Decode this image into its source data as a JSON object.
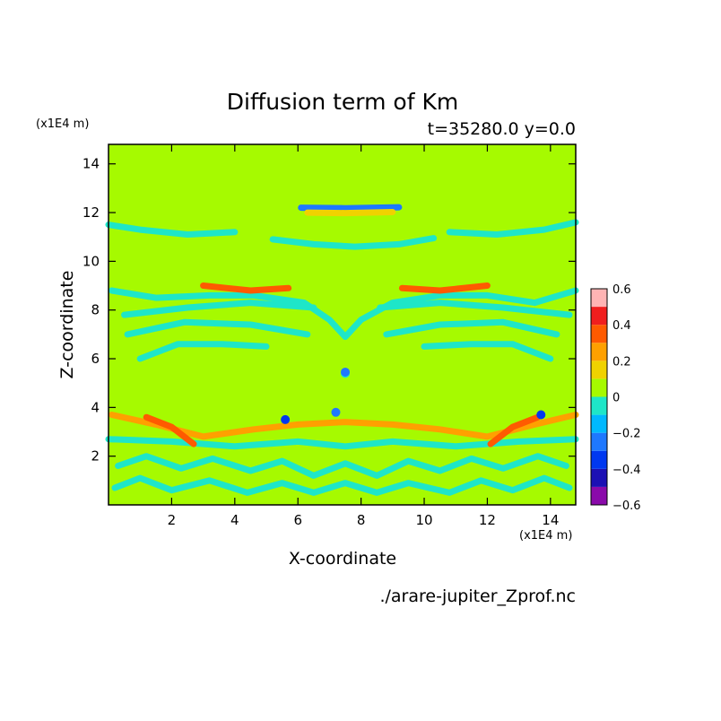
{
  "chart_data": {
    "type": "heatmap",
    "title": "Diffusion term of Km",
    "subtitle": "t=35280.0 y=0.0",
    "xlabel": "X-coordinate",
    "ylabel": "Z-coordinate",
    "x_unit": "(x1E4 m)",
    "y_unit": "(x1E4 m)",
    "xlim": [
      0,
      14.8
    ],
    "ylim": [
      0,
      14.8
    ],
    "x_ticks": [
      2,
      4,
      6,
      8,
      10,
      12,
      14
    ],
    "y_ticks": [
      2,
      4,
      6,
      8,
      10,
      12,
      14
    ],
    "background_value": 0,
    "colorbar": {
      "ticks": [
        "0.6",
        "0.4",
        "0.2",
        "0",
        "−0.2",
        "−0.4",
        "−0.6"
      ],
      "levels": [
        {
          "from": -0.6,
          "to": -0.5,
          "color": "#8a0aaa"
        },
        {
          "from": -0.5,
          "to": -0.4,
          "color": "#1c10b4"
        },
        {
          "from": -0.4,
          "to": -0.3,
          "color": "#0038f0"
        },
        {
          "from": -0.3,
          "to": -0.2,
          "color": "#1e78ff"
        },
        {
          "from": -0.2,
          "to": -0.1,
          "color": "#00b8ff"
        },
        {
          "from": -0.1,
          "to": 0.0,
          "color": "#1ee6c8"
        },
        {
          "from": 0.0,
          "to": 0.1,
          "color": "#a6fa00"
        },
        {
          "from": 0.1,
          "to": 0.2,
          "color": "#f0d200"
        },
        {
          "from": 0.2,
          "to": 0.3,
          "color": "#ffa000"
        },
        {
          "from": 0.3,
          "to": 0.4,
          "color": "#ff5a00"
        },
        {
          "from": 0.4,
          "to": 0.5,
          "color": "#f01e1e"
        },
        {
          "from": 0.5,
          "to": 0.6,
          "color": "#ffb4b4"
        }
      ]
    },
    "features": [
      {
        "type": "band",
        "value": -0.05,
        "points": [
          [
            0,
            11.5
          ],
          [
            1,
            11.3
          ],
          [
            2.5,
            11.1
          ],
          [
            4,
            11.2
          ]
        ]
      },
      {
        "type": "band",
        "value": -0.05,
        "points": [
          [
            10.8,
            11.2
          ],
          [
            12.3,
            11.1
          ],
          [
            13.8,
            11.3
          ],
          [
            14.8,
            11.6
          ]
        ]
      },
      {
        "type": "band",
        "value": -0.3,
        "points": [
          [
            6.1,
            12.2
          ],
          [
            7.5,
            12.18
          ],
          [
            9.2,
            12.22
          ]
        ]
      },
      {
        "type": "band",
        "value": 0.15,
        "points": [
          [
            6.3,
            12.0
          ],
          [
            7.5,
            11.98
          ],
          [
            9.0,
            12.02
          ]
        ]
      },
      {
        "type": "band",
        "value": -0.05,
        "points": [
          [
            5.2,
            10.9
          ],
          [
            6.5,
            10.7
          ],
          [
            7.8,
            10.6
          ],
          [
            9.2,
            10.7
          ],
          [
            10.3,
            10.95
          ]
        ]
      },
      {
        "type": "band",
        "value": -0.05,
        "points": [
          [
            0.1,
            8.8
          ],
          [
            1.5,
            8.5
          ],
          [
            3.2,
            8.6
          ],
          [
            4.6,
            8.6
          ],
          [
            6.2,
            8.3
          ],
          [
            7.0,
            7.6
          ],
          [
            7.5,
            6.9
          ],
          [
            8.0,
            7.6
          ],
          [
            9.0,
            8.3
          ],
          [
            10.5,
            8.6
          ],
          [
            12.0,
            8.6
          ],
          [
            13.5,
            8.3
          ],
          [
            14.8,
            8.8
          ]
        ]
      },
      {
        "type": "band",
        "value": -0.05,
        "points": [
          [
            0.5,
            7.8
          ],
          [
            2.5,
            8.1
          ],
          [
            4.5,
            8.3
          ],
          [
            6.5,
            8.1
          ]
        ]
      },
      {
        "type": "band",
        "value": -0.05,
        "points": [
          [
            8.6,
            8.1
          ],
          [
            10.5,
            8.3
          ],
          [
            12.5,
            8.1
          ],
          [
            14.6,
            7.8
          ]
        ]
      },
      {
        "type": "band",
        "value": 0.3,
        "points": [
          [
            3.0,
            9.0
          ],
          [
            4.5,
            8.8
          ],
          [
            5.7,
            8.9
          ]
        ]
      },
      {
        "type": "band",
        "value": 0.3,
        "points": [
          [
            9.3,
            8.9
          ],
          [
            10.5,
            8.8
          ],
          [
            12.0,
            9.0
          ]
        ]
      },
      {
        "type": "band",
        "value": -0.05,
        "points": [
          [
            0.6,
            7.0
          ],
          [
            2.4,
            7.5
          ],
          [
            4.5,
            7.4
          ],
          [
            6.3,
            7.0
          ]
        ]
      },
      {
        "type": "band",
        "value": -0.05,
        "points": [
          [
            8.8,
            7.0
          ],
          [
            10.5,
            7.4
          ],
          [
            12.5,
            7.5
          ],
          [
            14.2,
            7.0
          ]
        ]
      },
      {
        "type": "band",
        "value": -0.05,
        "points": [
          [
            1.0,
            6.0
          ],
          [
            2.2,
            6.6
          ],
          [
            3.6,
            6.6
          ],
          [
            5.0,
            6.5
          ]
        ]
      },
      {
        "type": "band",
        "value": -0.05,
        "points": [
          [
            10.0,
            6.5
          ],
          [
            11.5,
            6.6
          ],
          [
            12.8,
            6.6
          ],
          [
            14.0,
            6.0
          ]
        ]
      },
      {
        "type": "band",
        "value": 0.25,
        "points": [
          [
            0.1,
            3.7
          ],
          [
            1.5,
            3.3
          ],
          [
            3.0,
            2.8
          ],
          [
            4.6,
            3.1
          ],
          [
            6.0,
            3.3
          ],
          [
            7.5,
            3.4
          ],
          [
            9.0,
            3.3
          ],
          [
            10.5,
            3.1
          ],
          [
            12.0,
            2.8
          ],
          [
            13.5,
            3.3
          ],
          [
            14.8,
            3.7
          ]
        ]
      },
      {
        "type": "band",
        "value": -0.05,
        "points": [
          [
            0,
            2.7
          ],
          [
            2.0,
            2.6
          ],
          [
            4.0,
            2.4
          ],
          [
            6.0,
            2.6
          ],
          [
            7.5,
            2.4
          ],
          [
            9.0,
            2.6
          ],
          [
            11.0,
            2.4
          ],
          [
            13.0,
            2.6
          ],
          [
            14.8,
            2.7
          ]
        ]
      },
      {
        "type": "band",
        "value": -0.05,
        "points": [
          [
            0.3,
            1.6
          ],
          [
            1.2,
            2.0
          ],
          [
            2.3,
            1.5
          ],
          [
            3.3,
            1.9
          ],
          [
            4.5,
            1.4
          ],
          [
            5.5,
            1.8
          ],
          [
            6.5,
            1.2
          ],
          [
            7.5,
            1.7
          ],
          [
            8.5,
            1.2
          ],
          [
            9.5,
            1.8
          ],
          [
            10.5,
            1.4
          ],
          [
            11.5,
            1.9
          ],
          [
            12.5,
            1.5
          ],
          [
            13.6,
            2.0
          ],
          [
            14.5,
            1.6
          ]
        ]
      },
      {
        "type": "band",
        "value": -0.05,
        "points": [
          [
            0.2,
            0.7
          ],
          [
            1.0,
            1.1
          ],
          [
            2.0,
            0.6
          ],
          [
            3.2,
            1.0
          ],
          [
            4.4,
            0.5
          ],
          [
            5.5,
            0.9
          ],
          [
            6.5,
            0.5
          ],
          [
            7.5,
            0.9
          ],
          [
            8.5,
            0.5
          ],
          [
            9.5,
            0.9
          ],
          [
            10.8,
            0.5
          ],
          [
            11.8,
            1.0
          ],
          [
            12.8,
            0.6
          ],
          [
            13.8,
            1.1
          ],
          [
            14.6,
            0.7
          ]
        ]
      },
      {
        "type": "band",
        "value": 0.35,
        "points": [
          [
            1.2,
            3.6
          ],
          [
            2.0,
            3.2
          ],
          [
            2.7,
            2.5
          ]
        ]
      },
      {
        "type": "band",
        "value": 0.35,
        "points": [
          [
            12.1,
            2.5
          ],
          [
            12.8,
            3.2
          ],
          [
            13.6,
            3.6
          ]
        ]
      },
      {
        "type": "spot",
        "value": -0.1,
        "x": 7.5,
        "y": 5.4
      },
      {
        "type": "spot",
        "value": -0.3,
        "x": 7.5,
        "y": 5.45
      },
      {
        "type": "spot",
        "value": -0.3,
        "x": 7.2,
        "y": 3.8
      },
      {
        "type": "spot",
        "value": -0.4,
        "x": 5.6,
        "y": 3.5
      },
      {
        "type": "spot",
        "value": -0.4,
        "x": 13.7,
        "y": 3.7
      }
    ]
  },
  "footer": {
    "filename": "./arare-jupiter_Zprof.nc"
  }
}
